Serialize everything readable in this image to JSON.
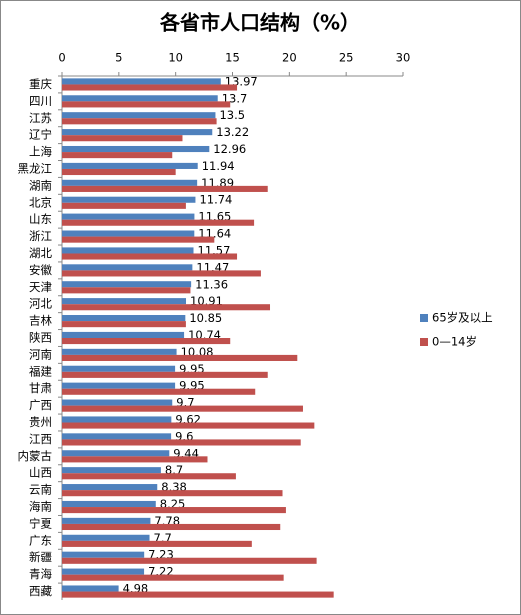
{
  "chart_data": {
    "type": "bar",
    "orientation": "horizontal",
    "title": "各省市人口结构（%）",
    "categories": [
      "重庆",
      "四川",
      "江苏",
      "辽宁",
      "上海",
      "黑龙江",
      "湖南",
      "北京",
      "山东",
      "浙江",
      "湖北",
      "安徽",
      "天津",
      "河北",
      "吉林",
      "陕西",
      "河南",
      "福建",
      "甘肃",
      "广西",
      "贵州",
      "江西",
      "内蒙古",
      "山西",
      "云南",
      "海南",
      "宁夏",
      "广东",
      "新疆",
      "青海",
      "西藏"
    ],
    "series": [
      {
        "name": "65岁及以上",
        "color": "#4f81bd",
        "values": [
          13.97,
          13.7,
          13.5,
          13.22,
          12.96,
          11.94,
          11.89,
          11.74,
          11.65,
          11.64,
          11.57,
          11.47,
          11.36,
          10.91,
          10.85,
          10.74,
          10.08,
          9.95,
          9.95,
          9.7,
          9.62,
          9.6,
          9.44,
          8.7,
          8.38,
          8.25,
          7.78,
          7.7,
          7.23,
          7.22,
          4.98
        ]
      },
      {
        "name": "0—14岁",
        "color": "#c0504d",
        "values": [
          15.4,
          14.8,
          13.6,
          10.6,
          9.7,
          10.0,
          18.1,
          10.9,
          16.9,
          13.4,
          15.4,
          17.5,
          11.3,
          18.3,
          10.9,
          14.8,
          20.7,
          18.1,
          17.0,
          21.2,
          22.2,
          21.0,
          12.8,
          15.3,
          19.4,
          19.7,
          19.2,
          16.7,
          22.4,
          19.5,
          23.9
        ]
      }
    ],
    "xlim": [
      0,
      30
    ],
    "xticks": [
      0,
      5,
      10,
      15,
      20,
      25,
      30
    ],
    "grid": false,
    "legend": "right"
  }
}
